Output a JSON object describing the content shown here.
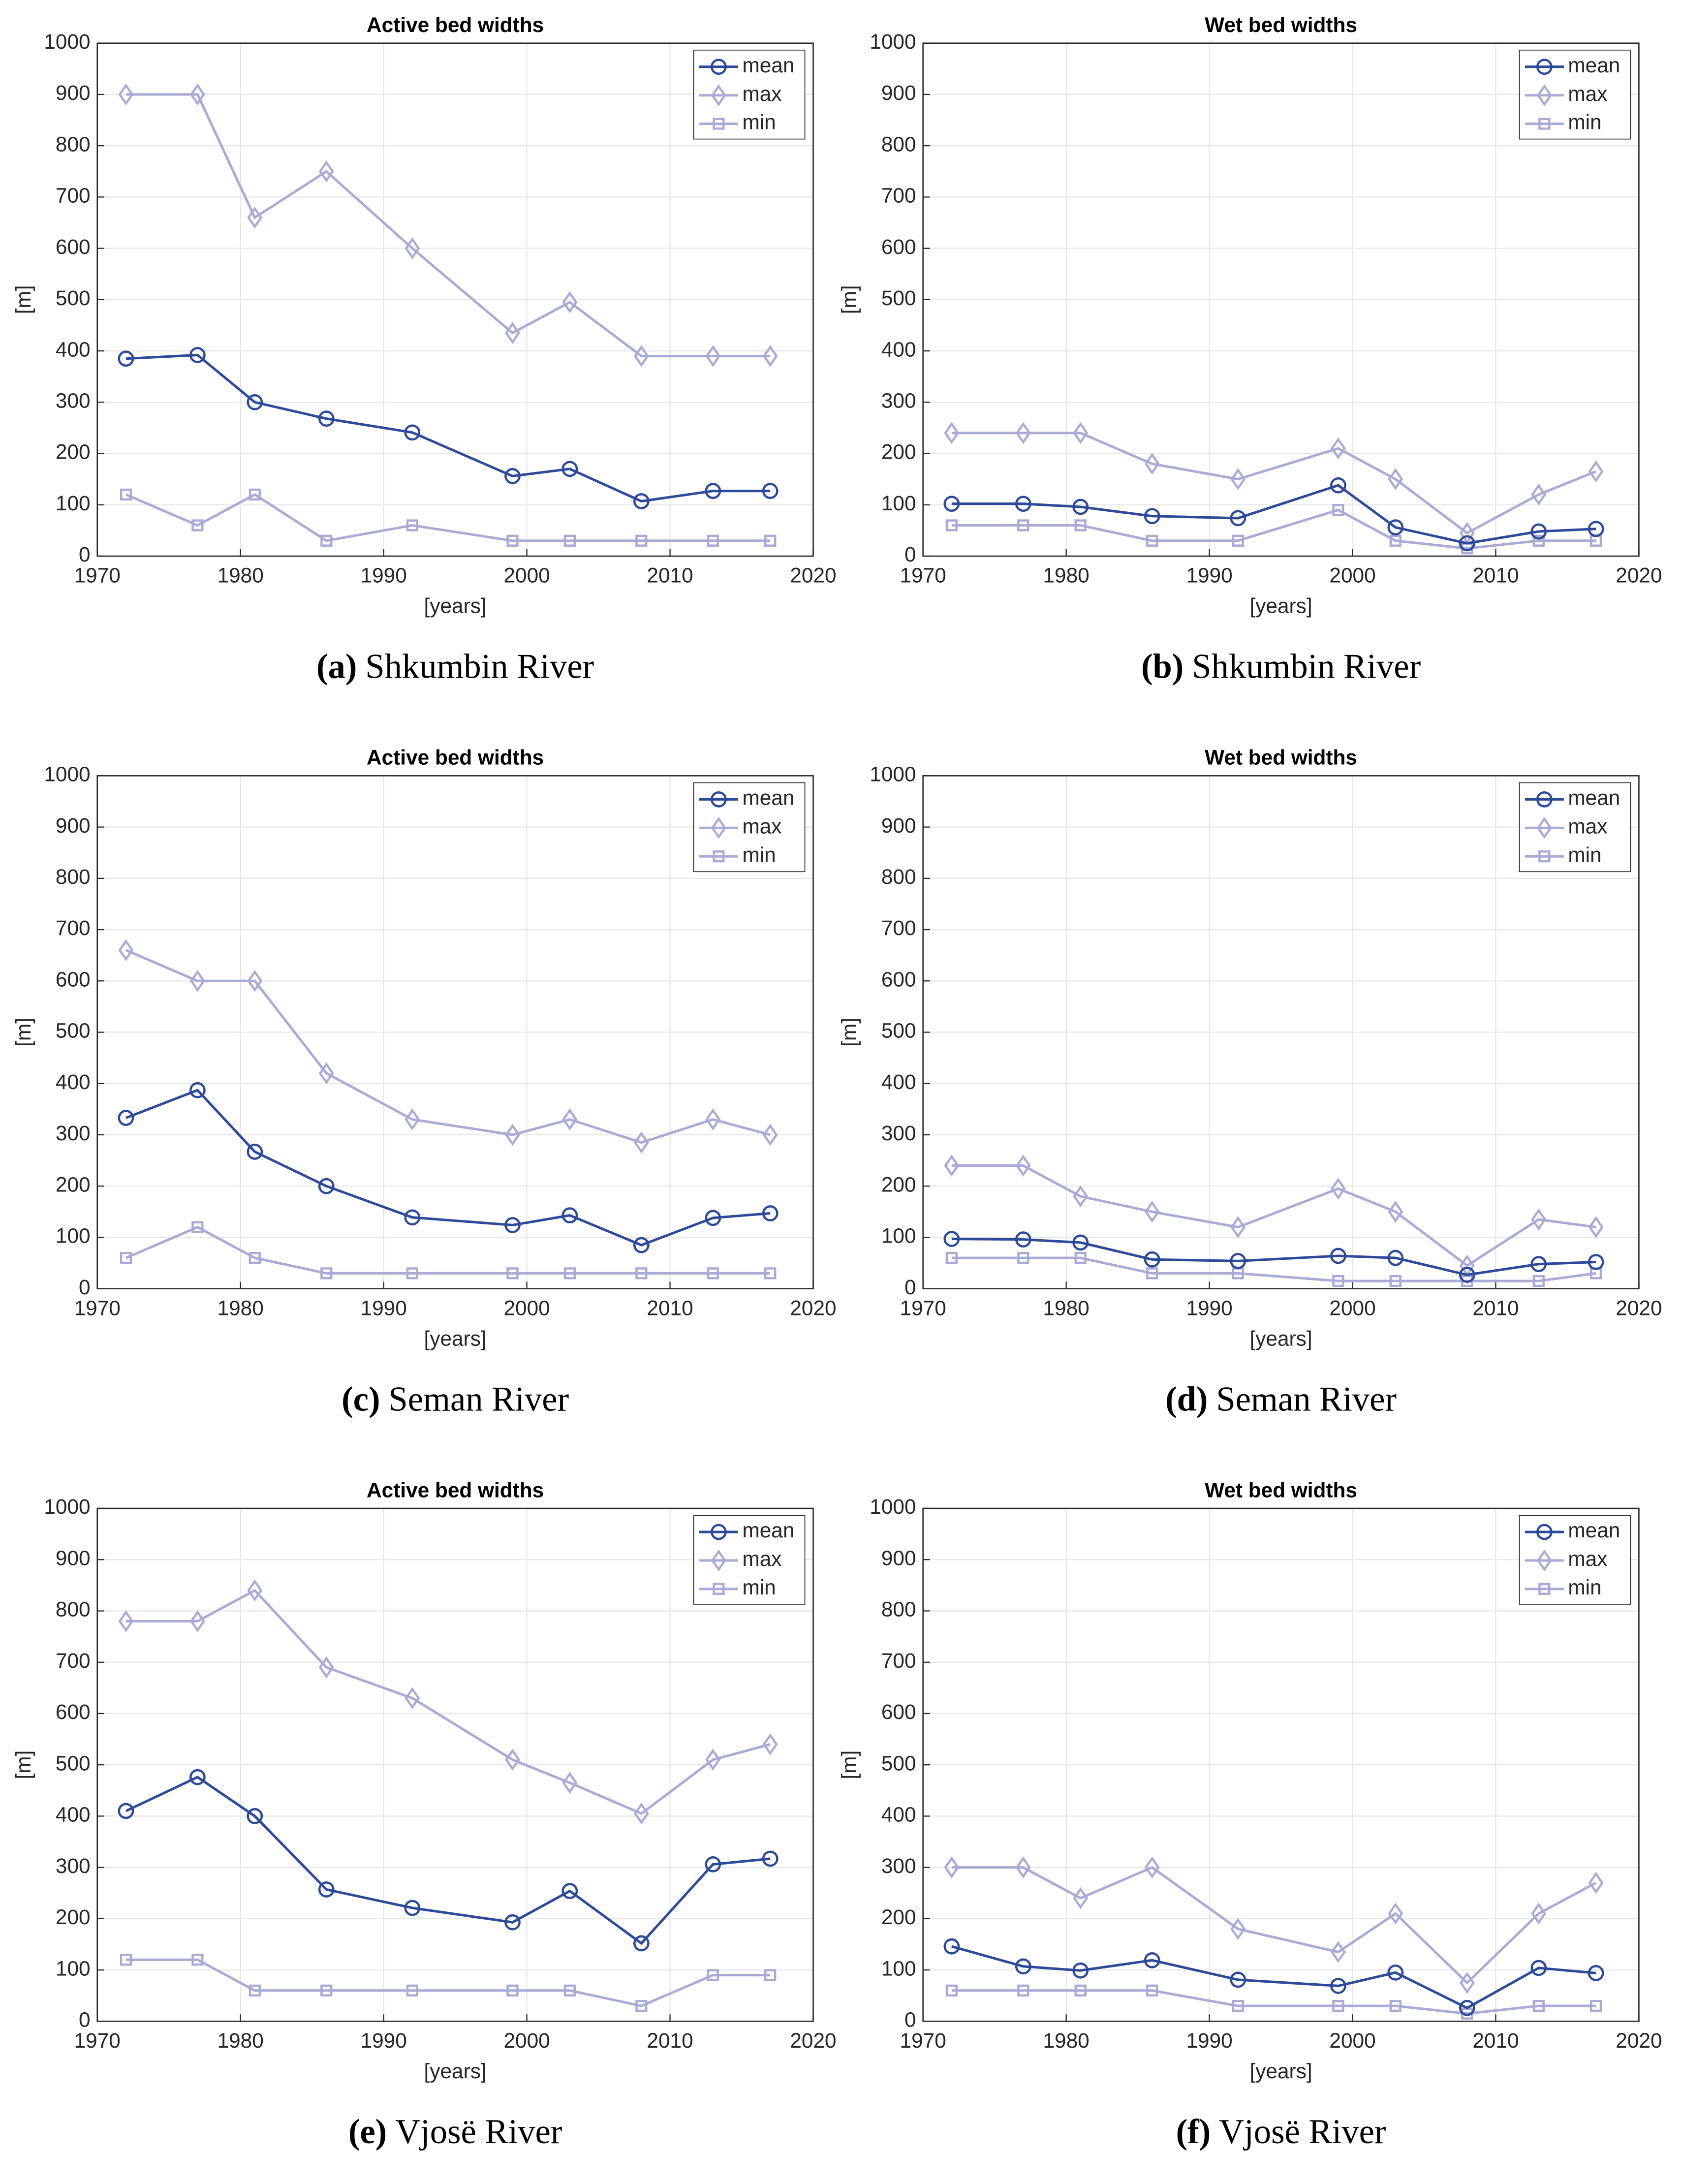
{
  "chart_data": [
    {
      "type": "line",
      "title": "Active bed widths",
      "xlabel": "[years]",
      "ylabel": "[m]",
      "caption_label": "(a)",
      "caption_text": "Shkumbin River",
      "x": [
        1972,
        1977,
        1981,
        1986,
        1992,
        1999,
        2003,
        2008,
        2013,
        2017
      ],
      "xlim": [
        1970,
        2020
      ],
      "xticks": [
        1970,
        1980,
        1990,
        2000,
        2010,
        2020
      ],
      "ylim": [
        0,
        1000
      ],
      "yticks": [
        0,
        100,
        200,
        300,
        400,
        500,
        600,
        700,
        800,
        900,
        1000
      ],
      "grid": true,
      "legend": "upper right",
      "series": [
        {
          "name": "mean",
          "color": "#2c4a9a",
          "marker": "circle",
          "values": [
            385,
            392,
            300,
            268,
            241,
            156,
            170,
            107,
            127,
            127
          ]
        },
        {
          "name": "max",
          "color": "#aaaad6",
          "marker": "diamond",
          "values": [
            900,
            900,
            660,
            750,
            600,
            435,
            495,
            390,
            390,
            390
          ]
        },
        {
          "name": "min",
          "color": "#aaaad6",
          "marker": "square",
          "values": [
            120,
            60,
            120,
            30,
            60,
            30,
            30,
            30,
            30,
            30
          ]
        }
      ]
    },
    {
      "type": "line",
      "title": "Wet bed widths",
      "xlabel": "[years]",
      "ylabel": "[m]",
      "caption_label": "(b)",
      "caption_text": "Shkumbin River",
      "x": [
        1972,
        1977,
        1981,
        1986,
        1992,
        1999,
        2003,
        2008,
        2013,
        2017
      ],
      "xlim": [
        1970,
        2020
      ],
      "xticks": [
        1970,
        1980,
        1990,
        2000,
        2010,
        2020
      ],
      "ylim": [
        0,
        1000
      ],
      "yticks": [
        0,
        100,
        200,
        300,
        400,
        500,
        600,
        700,
        800,
        900,
        1000
      ],
      "grid": true,
      "legend": "upper right",
      "series": [
        {
          "name": "mean",
          "color": "#2c4a9a",
          "marker": "circle",
          "values": [
            102,
            102,
            96,
            78,
            74,
            138,
            56,
            25,
            48,
            53
          ]
        },
        {
          "name": "max",
          "color": "#aaaad6",
          "marker": "diamond",
          "values": [
            240,
            240,
            240,
            180,
            150,
            210,
            150,
            45,
            120,
            165
          ]
        },
        {
          "name": "min",
          "color": "#aaaad6",
          "marker": "square",
          "values": [
            60,
            60,
            60,
            30,
            30,
            90,
            30,
            15,
            30,
            30
          ]
        }
      ]
    },
    {
      "type": "line",
      "title": "Active bed widths",
      "xlabel": "[years]",
      "ylabel": "[m]",
      "caption_label": "(c)",
      "caption_text": "Seman River",
      "x": [
        1972,
        1977,
        1981,
        1986,
        1992,
        1999,
        2003,
        2008,
        2013,
        2017
      ],
      "xlim": [
        1970,
        2020
      ],
      "xticks": [
        1970,
        1980,
        1990,
        2000,
        2010,
        2020
      ],
      "ylim": [
        0,
        1000
      ],
      "yticks": [
        0,
        100,
        200,
        300,
        400,
        500,
        600,
        700,
        800,
        900,
        1000
      ],
      "grid": true,
      "legend": "upper right",
      "series": [
        {
          "name": "mean",
          "color": "#2c4a9a",
          "marker": "circle",
          "values": [
            333,
            387,
            267,
            200,
            139,
            124,
            143,
            85,
            138,
            147
          ]
        },
        {
          "name": "max",
          "color": "#aaaad6",
          "marker": "diamond",
          "values": [
            660,
            600,
            600,
            420,
            330,
            300,
            330,
            285,
            330,
            300
          ]
        },
        {
          "name": "min",
          "color": "#aaaad6",
          "marker": "square",
          "values": [
            60,
            120,
            60,
            30,
            30,
            30,
            30,
            30,
            30,
            30
          ]
        }
      ]
    },
    {
      "type": "line",
      "title": "Wet bed widths",
      "xlabel": "[years]",
      "ylabel": "[m]",
      "caption_label": "(d)",
      "caption_text": "Seman River",
      "x": [
        1972,
        1977,
        1981,
        1986,
        1992,
        1999,
        2003,
        2008,
        2013,
        2017
      ],
      "xlim": [
        1970,
        2020
      ],
      "xticks": [
        1970,
        1980,
        1990,
        2000,
        2010,
        2020
      ],
      "ylim": [
        0,
        1000
      ],
      "yticks": [
        0,
        100,
        200,
        300,
        400,
        500,
        600,
        700,
        800,
        900,
        1000
      ],
      "grid": true,
      "legend": "upper right",
      "series": [
        {
          "name": "mean",
          "color": "#2c4a9a",
          "marker": "circle",
          "values": [
            97,
            96,
            90,
            57,
            54,
            64,
            60,
            27,
            48,
            52
          ]
        },
        {
          "name": "max",
          "color": "#aaaad6",
          "marker": "diamond",
          "values": [
            240,
            240,
            180,
            150,
            120,
            195,
            150,
            45,
            135,
            120
          ]
        },
        {
          "name": "min",
          "color": "#aaaad6",
          "marker": "square",
          "values": [
            60,
            60,
            60,
            30,
            30,
            15,
            15,
            15,
            15,
            30
          ]
        }
      ]
    },
    {
      "type": "line",
      "title": "Active bed widths",
      "xlabel": "[years]",
      "ylabel": "[m]",
      "caption_label": "(e)",
      "caption_text": "Vjosë River",
      "x": [
        1972,
        1977,
        1981,
        1986,
        1992,
        1999,
        2003,
        2008,
        2013,
        2017
      ],
      "xlim": [
        1970,
        2020
      ],
      "xticks": [
        1970,
        1980,
        1990,
        2000,
        2010,
        2020
      ],
      "ylim": [
        0,
        1000
      ],
      "yticks": [
        0,
        100,
        200,
        300,
        400,
        500,
        600,
        700,
        800,
        900,
        1000
      ],
      "grid": true,
      "legend": "upper right",
      "series": [
        {
          "name": "mean",
          "color": "#2c4a9a",
          "marker": "circle",
          "values": [
            410,
            476,
            400,
            257,
            221,
            193,
            254,
            152,
            306,
            317
          ]
        },
        {
          "name": "max",
          "color": "#aaaad6",
          "marker": "diamond",
          "values": [
            780,
            780,
            840,
            690,
            630,
            510,
            465,
            405,
            510,
            540
          ]
        },
        {
          "name": "min",
          "color": "#aaaad6",
          "marker": "square",
          "values": [
            120,
            120,
            60,
            60,
            60,
            60,
            60,
            30,
            90,
            90
          ]
        }
      ]
    },
    {
      "type": "line",
      "title": "Wet bed widths",
      "xlabel": "[years]",
      "ylabel": "[m]",
      "caption_label": "(f)",
      "caption_text": "Vjosë River",
      "x": [
        1972,
        1977,
        1981,
        1986,
        1992,
        1999,
        2003,
        2008,
        2013,
        2017
      ],
      "xlim": [
        1970,
        2020
      ],
      "xticks": [
        1970,
        1980,
        1990,
        2000,
        2010,
        2020
      ],
      "ylim": [
        0,
        1000
      ],
      "yticks": [
        0,
        100,
        200,
        300,
        400,
        500,
        600,
        700,
        800,
        900,
        1000
      ],
      "grid": true,
      "legend": "upper right",
      "series": [
        {
          "name": "mean",
          "color": "#2c4a9a",
          "marker": "circle",
          "values": [
            146,
            107,
            99,
            119,
            81,
            69,
            95,
            26,
            104,
            94
          ]
        },
        {
          "name": "max",
          "color": "#aaaad6",
          "marker": "diamond",
          "values": [
            300,
            300,
            240,
            300,
            180,
            135,
            210,
            75,
            210,
            270
          ]
        },
        {
          "name": "min",
          "color": "#aaaad6",
          "marker": "square",
          "values": [
            60,
            60,
            60,
            60,
            30,
            30,
            30,
            15,
            30,
            30
          ]
        }
      ]
    }
  ]
}
